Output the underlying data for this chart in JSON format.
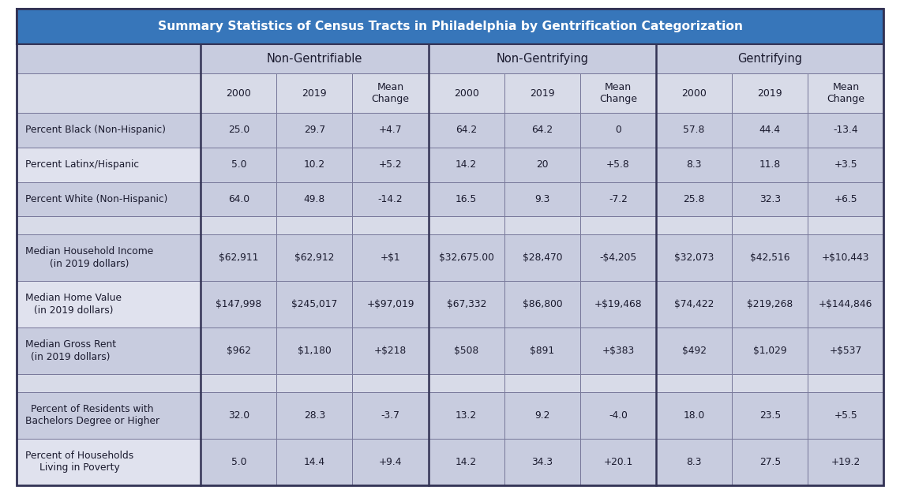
{
  "title": "Summary Statistics of Census Tracts in Philadelphia by Gentrification Categorization",
  "title_bg_color": "#3776BA",
  "title_text_color": "#FFFFFF",
  "group_header_bg": "#C8CCDF",
  "subheader_bg": "#D8DBE8",
  "row_label_dark_bg": "#C8CCDF",
  "row_label_light_bg": "#E0E2EE",
  "data_cell_bg": "#C8CCDF",
  "separator_bg": "#D8DBE8",
  "border_color": "#777799",
  "thick_border_color": "#333355",
  "outer_bg": "#FFFFFF",
  "group_headers": [
    "Non-Gentrifiable",
    "Non-Gentrifying",
    "Gentrifying"
  ],
  "col_subheaders": [
    "2000",
    "2019",
    "Mean\nChange"
  ],
  "row_labels": [
    "Percent Black (Non-Hispanic)",
    "Percent Latinx/Hispanic",
    "Percent White (Non-Hispanic)",
    "",
    "Median Household Income\n(in 2019 dollars)",
    "Median Home Value\n(in 2019 dollars)",
    "Median Gross Rent\n(in 2019 dollars)",
    "",
    "Percent of Residents with\nBachelors Degree or Higher",
    "Percent of Households\nLiving in Poverty"
  ],
  "row_label_alts": [
    true,
    false,
    true,
    false,
    true,
    false,
    true,
    false,
    true,
    false
  ],
  "data": [
    [
      "25.0",
      "29.7",
      "+4.7",
      "64.2",
      "64.2",
      "0",
      "57.8",
      "44.4",
      "-13.4"
    ],
    [
      "5.0",
      "10.2",
      "+5.2",
      "14.2",
      "20",
      "+5.8",
      "8.3",
      "11.8",
      "+3.5"
    ],
    [
      "64.0",
      "49.8",
      "-14.2",
      "16.5",
      "9.3",
      "-7.2",
      "25.8",
      "32.3",
      "+6.5"
    ],
    [
      "",
      "",
      "",
      "",
      "",
      "",
      "",
      "",
      ""
    ],
    [
      "$62,911",
      "$62,912",
      "+$1",
      "$32,675.00",
      "$28,470",
      "-$4,205",
      "$32,073",
      "$42,516",
      "+$10,443"
    ],
    [
      "$147,998",
      "$245,017",
      "+$97,019",
      "$67,332",
      "$86,800",
      "+$19,468",
      "$74,422",
      "$219,268",
      "+$144,846"
    ],
    [
      "$962",
      "$1,180",
      "+$218",
      "$508",
      "$891",
      "+$383",
      "$492",
      "$1,029",
      "+$537"
    ],
    [
      "",
      "",
      "",
      "",
      "",
      "",
      "",
      "",
      ""
    ],
    [
      "32.0",
      "28.3",
      "-3.7",
      "13.2",
      "9.2",
      "-4.0",
      "18.0",
      "23.5",
      "+5.5"
    ],
    [
      "5.0",
      "14.4",
      "+9.4",
      "14.2",
      "34.3",
      "+20.1",
      "8.3",
      "27.5",
      "+19.2"
    ]
  ]
}
